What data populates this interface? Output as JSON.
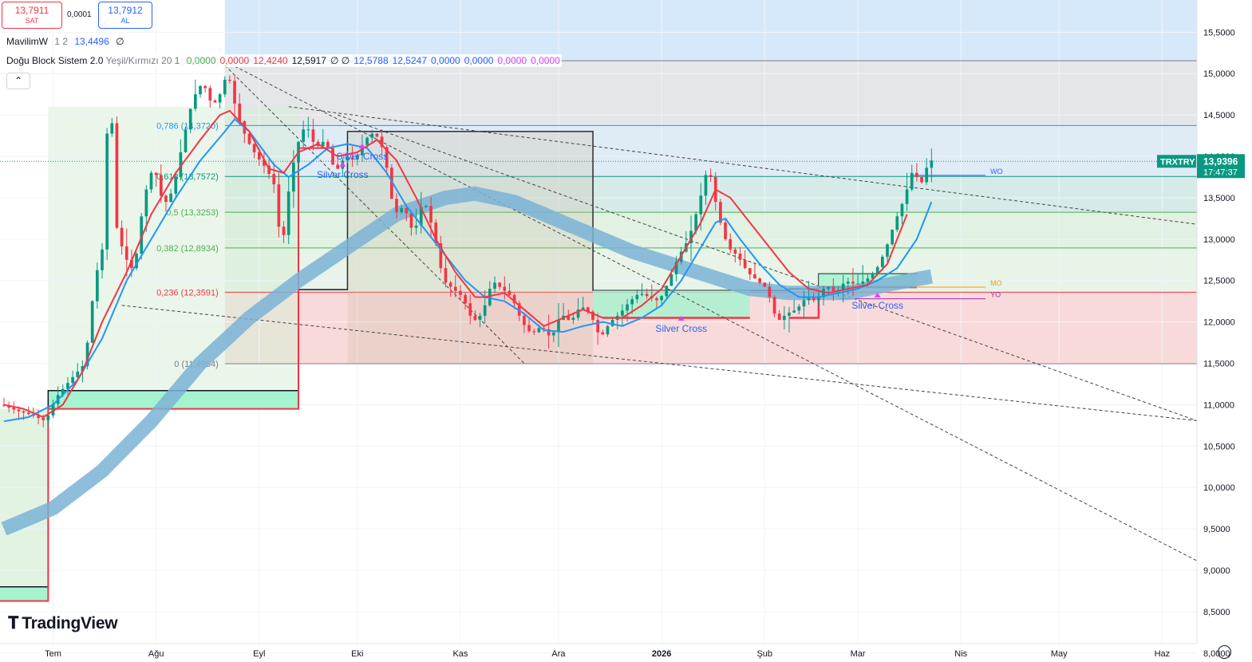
{
  "header": {
    "sell_price": "13,7911",
    "sell_label": "SAT",
    "spread": "0,0001",
    "buy_price": "13,7912",
    "buy_label": "AL",
    "collapse_icon": "chevron-up-icon"
  },
  "legend": {
    "ind1_name": "MavilimW",
    "ind1_params": "1 2",
    "ind1_value": "13,4496",
    "ind1_null": "∅",
    "ind2_name": "Doğu Block Sistem 2.0",
    "ind2_params": "Yeşil/Kırmızı 20 1",
    "ind2_values": [
      {
        "text": "0,0000",
        "color": "#4caf50"
      },
      {
        "text": "0,0000",
        "color": "#f23645"
      },
      {
        "text": "12,4240",
        "color": "#f23645"
      },
      {
        "text": "12,5917",
        "color": "#131722"
      },
      {
        "text": "∅ ∅",
        "color": "#131722"
      },
      {
        "text": "12,5788",
        "color": "#2962ff"
      },
      {
        "text": "12,5247",
        "color": "#2962ff"
      },
      {
        "text": "0,0000",
        "color": "#2962ff"
      },
      {
        "text": "0,0000",
        "color": "#2962ff"
      },
      {
        "text": "0,0000",
        "color": "#e040fb"
      },
      {
        "text": "0,0000",
        "color": "#e040fb"
      }
    ]
  },
  "brand": "TradingView",
  "settings_icon": "settings-icon",
  "chart_data": {
    "type": "candlestick",
    "symbol": "TRXTRY",
    "last_price": "13,9396",
    "countdown": "17:47:37",
    "y_range": [
      7.95,
      15.8
    ],
    "x_range": [
      0,
      260
    ],
    "y_ticks": [
      {
        "value": 15.5,
        "label": "15,5000"
      },
      {
        "value": 15.0,
        "label": "15,0000"
      },
      {
        "value": 14.5,
        "label": "14,5000"
      },
      {
        "value": 14.0,
        "label": "14,0000"
      },
      {
        "value": 13.5,
        "label": "13,5000"
      },
      {
        "value": 13.0,
        "label": "13,0000"
      },
      {
        "value": 12.5,
        "label": "12,5000"
      },
      {
        "value": 12.0,
        "label": "12,0000"
      },
      {
        "value": 11.5,
        "label": "11,5000"
      },
      {
        "value": 11.0,
        "label": "11,0000"
      },
      {
        "value": 10.5,
        "label": "10,5000"
      },
      {
        "value": 10.0,
        "label": "10,0000"
      },
      {
        "value": 9.5,
        "label": "9,5000"
      },
      {
        "value": 9.0,
        "label": "9,0000"
      },
      {
        "value": 8.5,
        "label": "8,5000"
      },
      {
        "value": 8.0,
        "label": "8,0000"
      }
    ],
    "x_ticks": [
      {
        "t": 10,
        "label": "Tem",
        "bold": false
      },
      {
        "t": 31,
        "label": "Ağu",
        "bold": false
      },
      {
        "t": 52,
        "label": "Eyl",
        "bold": false
      },
      {
        "t": 72,
        "label": "Eki",
        "bold": false
      },
      {
        "t": 93,
        "label": "Kas",
        "bold": false
      },
      {
        "t": 113,
        "label": "Ara",
        "bold": false
      },
      {
        "t": 134,
        "label": "2026",
        "bold": true
      },
      {
        "t": 155,
        "label": "Şub",
        "bold": false
      },
      {
        "t": 174,
        "label": "Mar",
        "bold": false
      },
      {
        "t": 195,
        "label": "Nis",
        "bold": false
      },
      {
        "t": 215,
        "label": "May",
        "bold": false
      },
      {
        "t": 236,
        "label": "Haz",
        "bold": false
      }
    ],
    "path_points": [
      [
        0,
        11.0
      ],
      [
        3,
        10.93
      ],
      [
        6,
        10.88
      ],
      [
        9,
        10.8
      ],
      [
        11,
        11.08
      ],
      [
        14,
        11.3
      ],
      [
        17,
        11.5
      ],
      [
        19,
        12.5
      ],
      [
        21,
        13.0
      ],
      [
        22,
        15.55
      ],
      [
        23,
        13.25
      ],
      [
        25,
        12.8
      ],
      [
        27,
        12.6
      ],
      [
        29,
        13.5
      ],
      [
        31,
        13.9
      ],
      [
        33,
        13.4
      ],
      [
        35,
        13.6
      ],
      [
        37,
        14.2
      ],
      [
        39,
        14.7
      ],
      [
        41,
        14.9
      ],
      [
        43,
        14.6
      ],
      [
        45,
        14.8
      ],
      [
        46,
        15.05
      ],
      [
        48,
        14.5
      ],
      [
        50,
        14.2
      ],
      [
        52,
        14.0
      ],
      [
        54,
        13.85
      ],
      [
        56,
        13.6
      ],
      [
        57,
        12.7
      ],
      [
        58,
        13.4
      ],
      [
        60,
        14.1
      ],
      [
        62,
        14.4
      ],
      [
        64,
        14.1
      ],
      [
        66,
        14.2
      ],
      [
        68,
        13.8
      ],
      [
        70,
        14.0
      ],
      [
        72,
        13.95
      ],
      [
        74,
        14.2
      ],
      [
        76,
        14.3
      ],
      [
        78,
        14.05
      ],
      [
        80,
        13.3
      ],
      [
        82,
        13.4
      ],
      [
        84,
        13.05
      ],
      [
        86,
        13.5
      ],
      [
        88,
        13.1
      ],
      [
        90,
        12.5
      ],
      [
        92,
        12.4
      ],
      [
        94,
        12.3
      ],
      [
        96,
        12.0
      ],
      [
        98,
        12.1
      ],
      [
        100,
        12.5
      ],
      [
        102,
        12.4
      ],
      [
        104,
        12.3
      ],
      [
        106,
        12.0
      ],
      [
        108,
        11.85
      ],
      [
        110,
        11.95
      ],
      [
        112,
        11.8
      ],
      [
        114,
        12.1
      ],
      [
        116,
        12.0
      ],
      [
        118,
        12.2
      ],
      [
        120,
        12.1
      ],
      [
        122,
        11.8
      ],
      [
        124,
        12.0
      ],
      [
        126,
        12.1
      ],
      [
        128,
        12.25
      ],
      [
        130,
        12.35
      ],
      [
        132,
        12.3
      ],
      [
        134,
        12.25
      ],
      [
        136,
        12.5
      ],
      [
        138,
        12.8
      ],
      [
        140,
        13.0
      ],
      [
        142,
        13.4
      ],
      [
        144,
        13.9
      ],
      [
        146,
        13.3
      ],
      [
        148,
        12.9
      ],
      [
        150,
        12.8
      ],
      [
        152,
        12.6
      ],
      [
        154,
        12.5
      ],
      [
        156,
        12.4
      ],
      [
        158,
        12.0
      ],
      [
        160,
        12.1
      ],
      [
        162,
        12.15
      ],
      [
        164,
        12.3
      ],
      [
        166,
        12.25
      ],
      [
        168,
        12.45
      ],
      [
        170,
        12.35
      ],
      [
        172,
        12.5
      ],
      [
        174,
        12.45
      ],
      [
        176,
        12.5
      ],
      [
        178,
        12.6
      ],
      [
        180,
        12.85
      ],
      [
        182,
        13.2
      ],
      [
        184,
        13.5
      ],
      [
        186,
        13.9
      ],
      [
        187,
        13.6
      ],
      [
        189,
        13.95
      ]
    ],
    "lines": {
      "mavilim_blue": [
        [
          0,
          10.8
        ],
        [
          5,
          10.85
        ],
        [
          10,
          11.0
        ],
        [
          15,
          11.3
        ],
        [
          20,
          11.8
        ],
        [
          25,
          12.5
        ],
        [
          30,
          13.0
        ],
        [
          35,
          13.5
        ],
        [
          40,
          13.95
        ],
        [
          45,
          14.3
        ],
        [
          47,
          14.45
        ],
        [
          50,
          14.3
        ],
        [
          55,
          13.9
        ],
        [
          58,
          13.75
        ],
        [
          62,
          13.9
        ],
        [
          66,
          14.1
        ],
        [
          70,
          14.15
        ],
        [
          74,
          14.1
        ],
        [
          78,
          13.8
        ],
        [
          82,
          13.4
        ],
        [
          86,
          13.1
        ],
        [
          90,
          12.8
        ],
        [
          94,
          12.5
        ],
        [
          98,
          12.3
        ],
        [
          102,
          12.25
        ],
        [
          106,
          12.1
        ],
        [
          110,
          11.9
        ],
        [
          114,
          11.88
        ],
        [
          118,
          11.95
        ],
        [
          122,
          12.0
        ],
        [
          126,
          11.95
        ],
        [
          130,
          12.05
        ],
        [
          134,
          12.2
        ],
        [
          138,
          12.5
        ],
        [
          142,
          12.9
        ],
        [
          145,
          13.2
        ],
        [
          147,
          13.25
        ],
        [
          150,
          13.0
        ],
        [
          154,
          12.7
        ],
        [
          158,
          12.45
        ],
        [
          162,
          12.3
        ],
        [
          166,
          12.3
        ],
        [
          170,
          12.35
        ],
        [
          174,
          12.4
        ],
        [
          178,
          12.5
        ],
        [
          182,
          12.65
        ],
        [
          186,
          13.0
        ],
        [
          189,
          13.45
        ]
      ],
      "red_ma": [
        [
          0,
          11.0
        ],
        [
          4,
          10.95
        ],
        [
          8,
          10.85
        ],
        [
          12,
          11.0
        ],
        [
          16,
          11.4
        ],
        [
          20,
          12.0
        ],
        [
          25,
          12.6
        ],
        [
          30,
          13.3
        ],
        [
          35,
          13.8
        ],
        [
          40,
          14.2
        ],
        [
          44,
          14.5
        ],
        [
          46,
          14.55
        ],
        [
          50,
          14.3
        ],
        [
          54,
          13.85
        ],
        [
          57,
          13.8
        ],
        [
          60,
          14.05
        ],
        [
          64,
          14.15
        ],
        [
          68,
          14.0
        ],
        [
          72,
          14.05
        ],
        [
          76,
          14.2
        ],
        [
          80,
          13.95
        ],
        [
          84,
          13.5
        ],
        [
          88,
          13.0
        ],
        [
          92,
          12.6
        ],
        [
          96,
          12.3
        ],
        [
          98,
          12.3
        ],
        [
          102,
          12.35
        ],
        [
          106,
          12.15
        ],
        [
          110,
          11.95
        ],
        [
          114,
          12.05
        ],
        [
          118,
          12.15
        ],
        [
          122,
          12.05
        ],
        [
          126,
          12.05
        ],
        [
          130,
          12.2
        ],
        [
          134,
          12.4
        ],
        [
          138,
          12.8
        ],
        [
          142,
          13.2
        ],
        [
          145,
          13.6
        ],
        [
          148,
          13.5
        ],
        [
          152,
          13.2
        ],
        [
          156,
          12.9
        ],
        [
          160,
          12.6
        ],
        [
          164,
          12.4
        ],
        [
          168,
          12.35
        ],
        [
          172,
          12.4
        ],
        [
          176,
          12.45
        ],
        [
          180,
          12.7
        ],
        [
          184,
          13.3
        ]
      ],
      "wide_band": [
        [
          0,
          9.5
        ],
        [
          10,
          9.75
        ],
        [
          20,
          10.2
        ],
        [
          30,
          10.8
        ],
        [
          40,
          11.5
        ],
        [
          50,
          12.05
        ],
        [
          60,
          12.5
        ],
        [
          70,
          12.9
        ],
        [
          80,
          13.3
        ],
        [
          90,
          13.5
        ],
        [
          96,
          13.55
        ],
        [
          104,
          13.45
        ],
        [
          112,
          13.25
        ],
        [
          120,
          13.05
        ],
        [
          128,
          12.85
        ],
        [
          136,
          12.7
        ],
        [
          144,
          12.55
        ],
        [
          152,
          12.4
        ],
        [
          160,
          12.35
        ],
        [
          166,
          12.35
        ],
        [
          172,
          12.35
        ],
        [
          180,
          12.45
        ],
        [
          189,
          12.55
        ]
      ]
    },
    "fib_levels": [
      {
        "ratio": 1.0,
        "label": "1 (15,1552)",
        "value": 15.1552,
        "color": "#787b86"
      },
      {
        "ratio": 0.786,
        "label": "0,786 (14,3720)",
        "value": 14.372,
        "color": "#2196f3"
      },
      {
        "ratio": 0.618,
        "label": "0,618 (13,7572)",
        "value": 13.7572,
        "color": "#089981"
      },
      {
        "ratio": 0.5,
        "label": "0,5 (13,3253)",
        "value": 13.3253,
        "color": "#4caf50"
      },
      {
        "ratio": 0.382,
        "label": "0,382 (12,8934)",
        "value": 12.8934,
        "color": "#4caf50"
      },
      {
        "ratio": 0.236,
        "label": "0,236 (12,3591)",
        "value": 12.3591,
        "color": "#f23645"
      },
      {
        "ratio": 0.0,
        "label": "0 (11,4954)",
        "value": 11.4954,
        "color": "#787b86"
      }
    ],
    "annotations": [
      {
        "text": "Silver Cross",
        "t": 73,
        "v": 14.0
      },
      {
        "text": "Silver Cross",
        "t": 69,
        "v": 13.78
      },
      {
        "text": "Silver Cross",
        "t": 138,
        "v": 11.92
      },
      {
        "text": "Silver Cross",
        "t": 178,
        "v": 12.2
      }
    ],
    "level_tags": [
      {
        "text": "WO",
        "t": 201,
        "v": 13.77,
        "color": "#2962ff"
      },
      {
        "text": "MO",
        "t": 201,
        "v": 12.42,
        "color": "#ff9800"
      },
      {
        "text": "YO",
        "t": 201,
        "v": 12.28,
        "color": "#9c27b0"
      }
    ]
  }
}
